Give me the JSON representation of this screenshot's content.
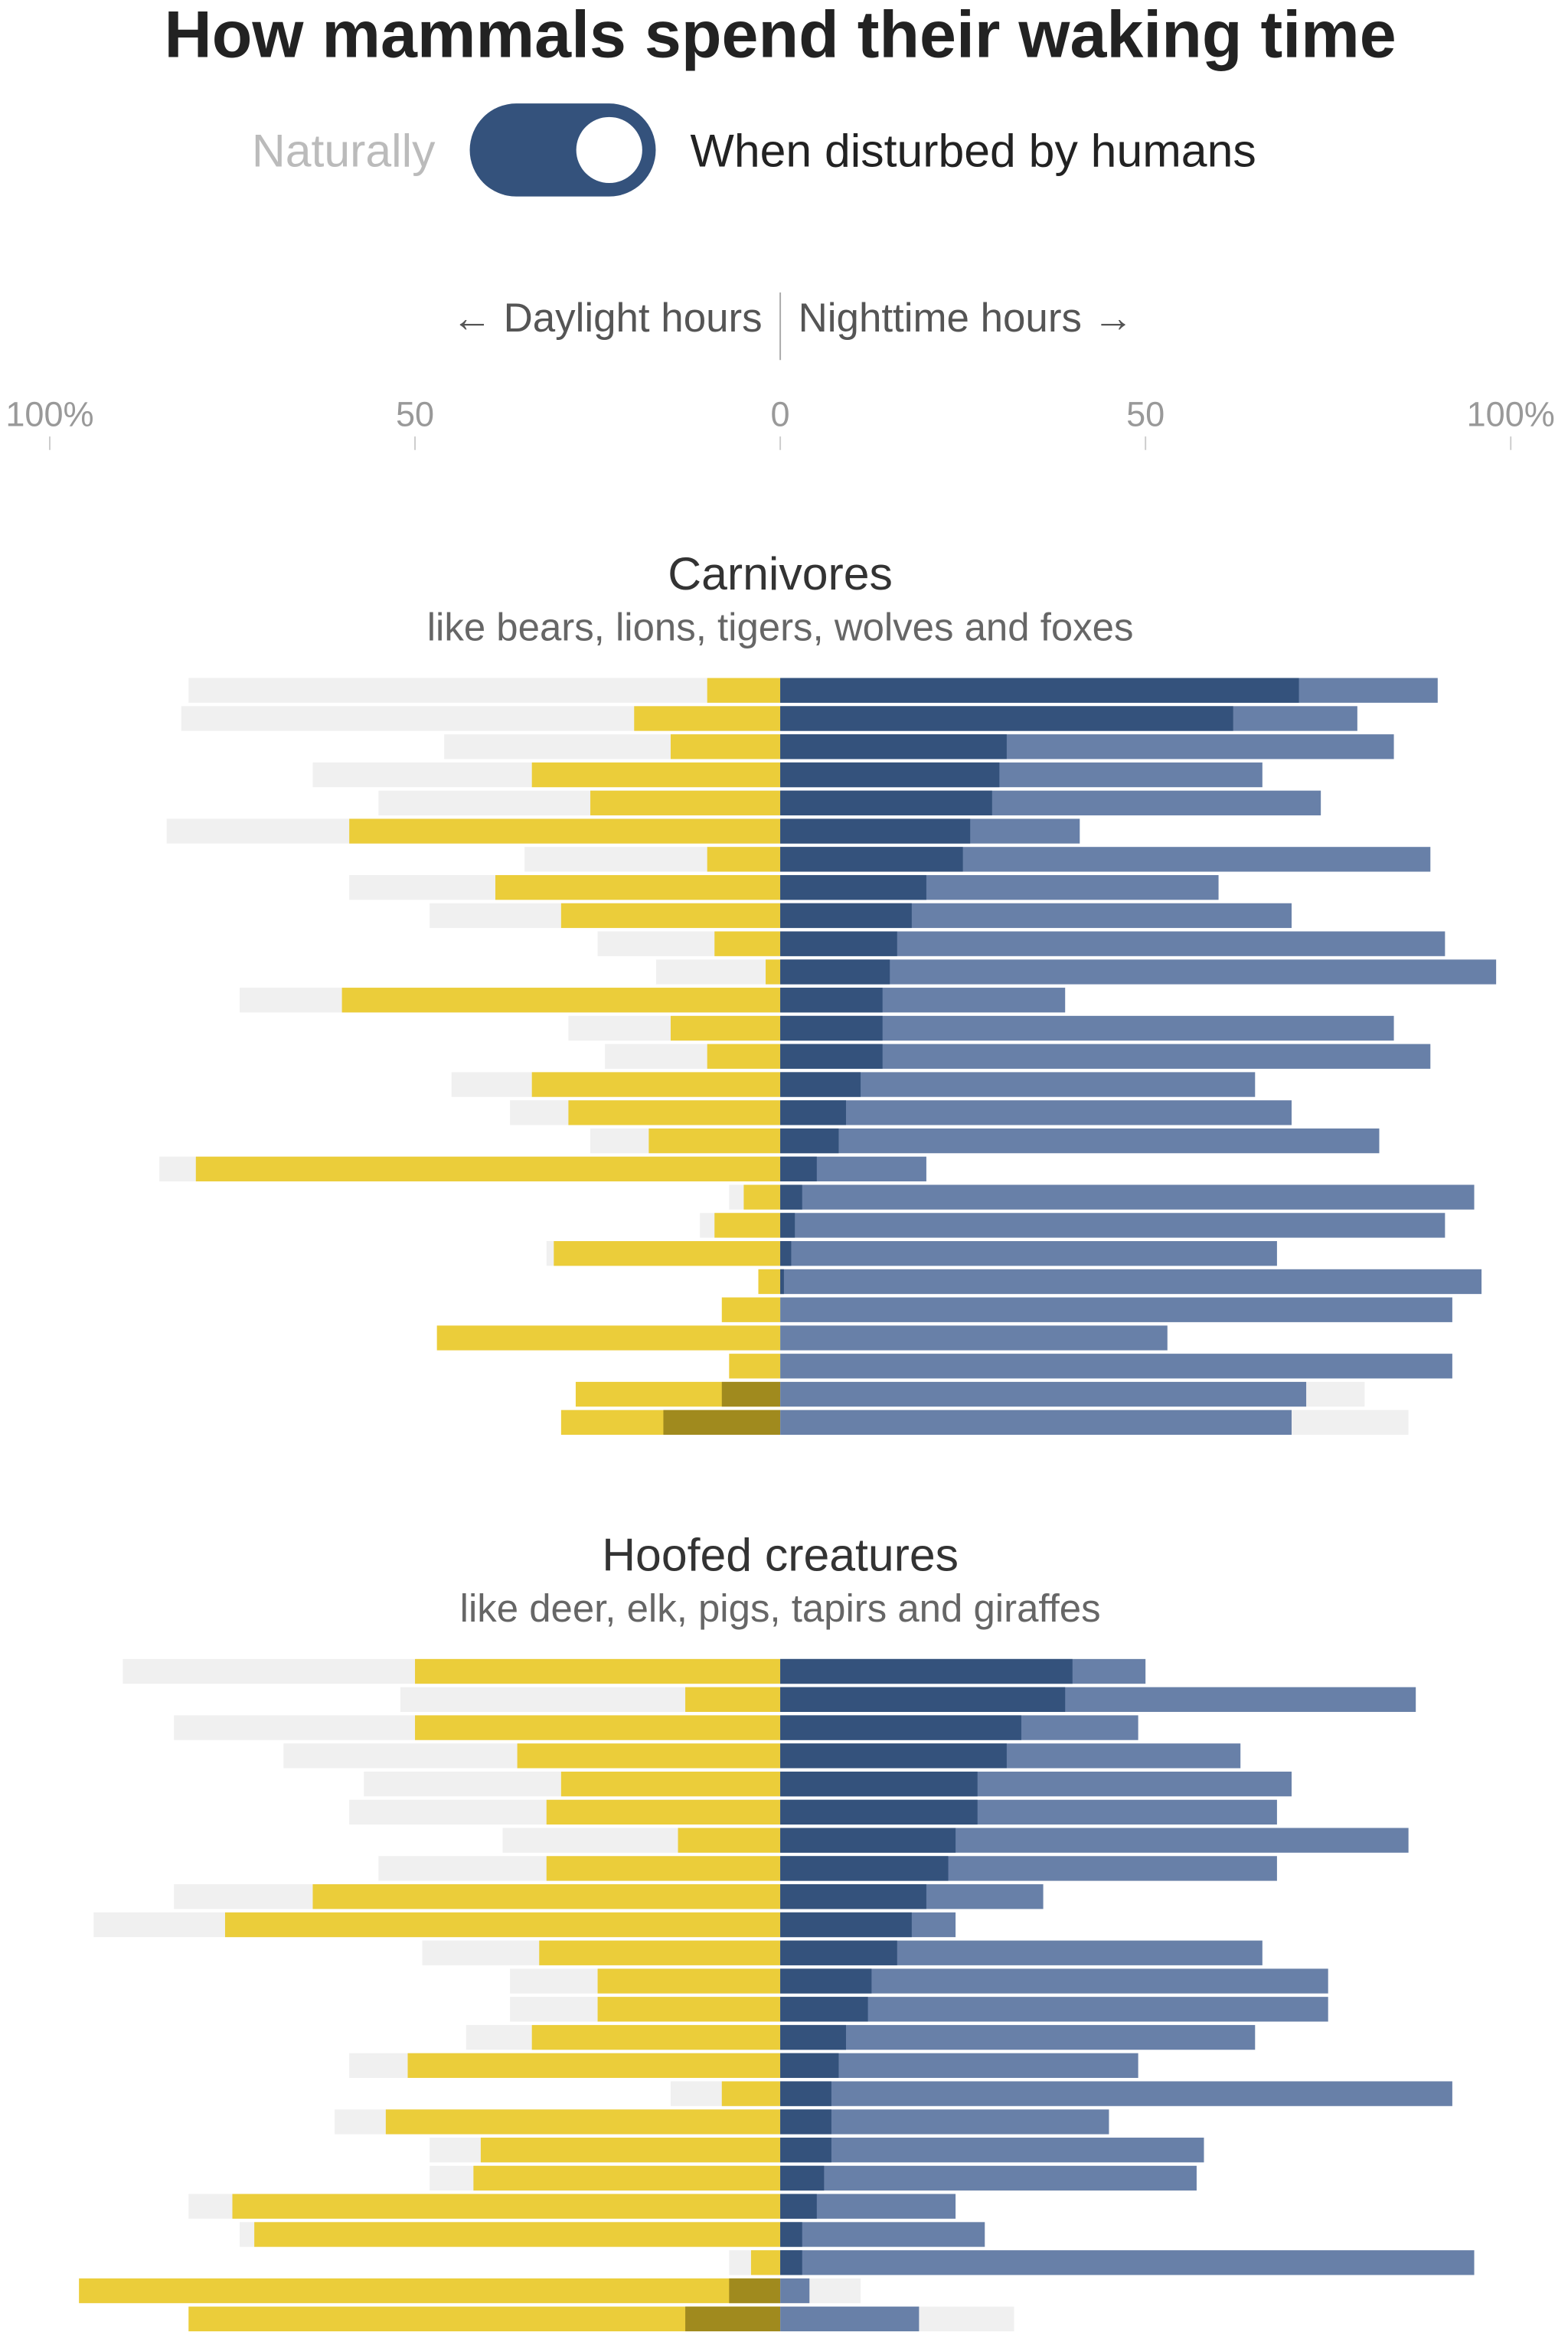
{
  "title": "How mammals spend their waking time",
  "toggle": {
    "left_label": "Naturally",
    "right_label": "When disturbed by humans",
    "state": "on",
    "color": "#34527c"
  },
  "axis_header": {
    "left": "← Daylight hours",
    "right": "Nighttime hours →"
  },
  "colors": {
    "natural": "#f0f0f0",
    "day": "#ebcd3a",
    "day_overlap": "#a08a1e",
    "night_overlap": "#34527c",
    "night": "#6880a8"
  },
  "chart_data": {
    "type": "bar",
    "orientation": "horizontal-diverging",
    "axis": {
      "ticks": [
        "100%",
        "50",
        "0",
        "50",
        "100%"
      ],
      "range": [
        -100,
        100
      ],
      "unit": "%"
    },
    "row_fields": [
      "day_natural",
      "day_disturbed",
      "day_dark",
      "night_dark",
      "night_disturbed",
      "night_natural"
    ],
    "panels": [
      {
        "title": "Carnivores",
        "subtitle": "like bears, lions, tigers, wolves and foxes",
        "rows": [
          [
            81,
            10,
            0,
            71,
            90,
            null
          ],
          [
            82,
            20,
            0,
            62,
            79,
            null
          ],
          [
            46,
            15,
            0,
            31,
            84,
            null
          ],
          [
            64,
            34,
            0,
            30,
            66,
            null
          ],
          [
            55,
            26,
            0,
            29,
            74,
            null
          ],
          [
            84,
            59,
            0,
            26,
            41,
            null
          ],
          [
            35,
            10,
            0,
            25,
            89,
            null
          ],
          [
            59,
            39,
            0,
            20,
            60,
            null
          ],
          [
            48,
            30,
            0,
            18,
            70,
            null
          ],
          [
            25,
            9,
            0,
            16,
            91,
            null
          ],
          [
            17,
            2,
            0,
            15,
            98,
            null
          ],
          [
            74,
            60,
            0,
            14,
            39,
            null
          ],
          [
            29,
            15,
            0,
            14,
            84,
            null
          ],
          [
            24,
            10,
            0,
            14,
            89,
            null
          ],
          [
            45,
            34,
            0,
            11,
            65,
            null
          ],
          [
            37,
            29,
            0,
            9,
            70,
            null
          ],
          [
            26,
            18,
            0,
            8,
            82,
            null
          ],
          [
            85,
            80,
            0,
            5,
            20,
            null
          ],
          [
            7,
            5,
            0,
            3,
            95,
            null
          ],
          [
            11,
            9,
            0,
            2,
            91,
            null
          ],
          [
            32,
            31,
            0,
            1.5,
            68,
            null
          ],
          [
            null,
            3,
            0,
            0.5,
            96,
            null
          ],
          [
            null,
            8,
            0,
            0,
            92,
            null
          ],
          [
            null,
            47,
            0,
            0,
            53,
            null
          ],
          [
            null,
            7,
            0,
            0,
            92,
            null
          ],
          [
            null,
            28,
            8,
            0,
            72,
            80
          ],
          [
            null,
            30,
            16,
            0,
            70,
            86
          ]
        ]
      },
      {
        "title": "Hoofed creatures",
        "subtitle": "like deer, elk, pigs, tapirs and giraffes",
        "rows": [
          [
            90,
            50,
            0,
            40,
            50,
            null
          ],
          [
            52,
            13,
            0,
            39,
            87,
            null
          ],
          [
            83,
            50,
            0,
            33,
            49,
            null
          ],
          [
            68,
            36,
            0,
            31,
            63,
            null
          ],
          [
            57,
            30,
            0,
            27,
            70,
            null
          ],
          [
            59,
            32,
            0,
            27,
            68,
            null
          ],
          [
            38,
            14,
            0,
            24,
            86,
            null
          ],
          [
            55,
            32,
            0,
            23,
            68,
            null
          ],
          [
            83,
            64,
            0,
            20,
            36,
            null
          ],
          [
            94,
            76,
            0,
            18,
            24,
            null
          ],
          [
            49,
            33,
            0,
            16,
            66,
            null
          ],
          [
            37,
            25,
            0,
            12.5,
            75,
            null
          ],
          [
            37,
            25,
            0,
            12,
            75,
            null
          ],
          [
            43,
            34,
            0,
            9,
            65,
            null
          ],
          [
            59,
            51,
            0,
            8,
            49,
            null
          ],
          [
            15,
            8,
            0,
            7,
            92,
            null
          ],
          [
            61,
            54,
            0,
            7,
            45,
            null
          ],
          [
            48,
            41,
            0,
            7,
            58,
            null
          ],
          [
            48,
            42,
            0,
            6,
            57,
            null
          ],
          [
            81,
            75,
            0,
            5,
            24,
            null
          ],
          [
            74,
            72,
            0,
            3,
            28,
            null
          ],
          [
            7,
            4,
            0,
            3,
            95,
            null
          ],
          [
            null,
            96,
            7,
            0,
            4,
            11
          ],
          [
            null,
            81,
            13,
            0,
            19,
            32
          ]
        ]
      }
    ]
  }
}
